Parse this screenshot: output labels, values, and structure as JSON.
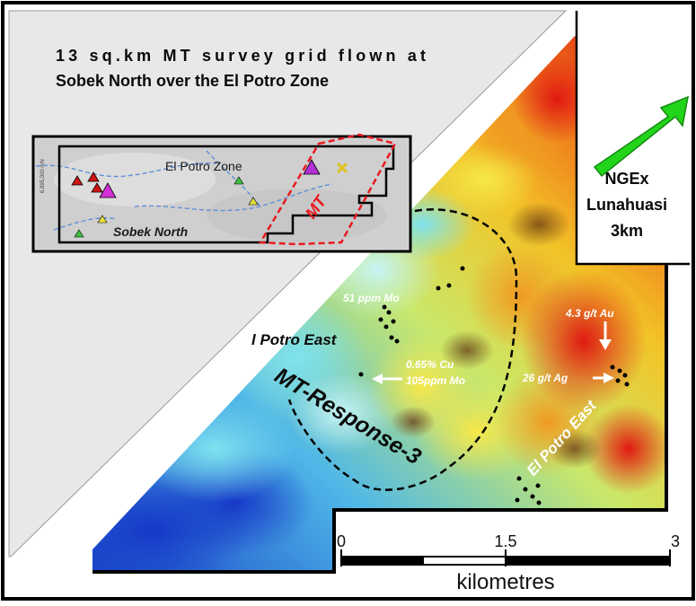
{
  "map": {
    "title_line1": "13 sq.km MT survey grid flown at",
    "title_line2": "Sobek North over the El Potro Zone",
    "inset": {
      "label_el_potro_zone": "El Potro Zone",
      "label_sobek_north": "Sobek North",
      "label_mt": "MT",
      "axis_label": "6,895,000 mN"
    },
    "arrow": {
      "line1": "NGEx",
      "line2": "Lunahuasi",
      "line3": "3km"
    },
    "annotations": {
      "mo_51": "51 ppm Mo",
      "au_43": "4.3 g/t Au",
      "ag_26": "26 g/t Ag",
      "cu_065": "0.65% Cu",
      "mo_105": "105ppm Mo",
      "el_potro_east_left": "l Potro East",
      "el_potro_east_right": "El Potro East",
      "mt_response_3": "MT-Response-3"
    },
    "scale": {
      "tick_0": "0",
      "tick_mid": "1.5",
      "tick_end": "3",
      "unit": "kilometres"
    },
    "colors": {
      "frame": "#000000",
      "arrow_green": "#22d41a",
      "survey_outline": "#e8191f",
      "inset_background": "#d9d9d9",
      "diagonal_panel": "#e8e8ea"
    }
  }
}
